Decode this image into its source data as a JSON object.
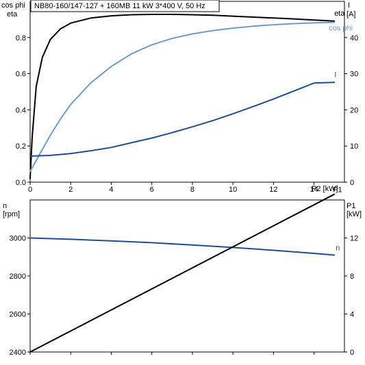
{
  "title": "NB80-160/147-127 + 160MB   11 kW   3*400 V, 50 Hz",
  "colors": {
    "eta": "#000000",
    "cosphi": "#6f9cc4",
    "current": "#1f4e8c",
    "speed": "#1f4e8c",
    "p1": "#000000"
  },
  "chart_data": [
    {
      "type": "line",
      "panel": "top",
      "title": "NB80-160/147-127 + 160MB   11 kW   3*400 V, 50 Hz",
      "xlabel": "P2 [kW]",
      "ylabel_left": [
        "cos phi",
        "eta"
      ],
      "ylabel_right": [
        "I",
        "[A]"
      ],
      "xlim": [
        0,
        15.5
      ],
      "ylim_left": [
        0,
        1.0
      ],
      "ylim_right": [
        0,
        50
      ],
      "xticks": [
        0,
        2,
        4,
        6,
        8,
        10,
        12,
        14
      ],
      "yticks_left": [
        0.0,
        0.2,
        0.4,
        0.6,
        0.8
      ],
      "yticks_left_labels": [
        "0.0",
        "0.2",
        "0.4",
        "0.6",
        "0.8"
      ],
      "yticks_right": [
        0,
        10,
        20,
        30,
        40
      ],
      "grid": false,
      "series": [
        {
          "name": "eta",
          "axis": "left",
          "color": "#000000",
          "x": [
            0.0,
            0.1,
            0.3,
            0.6,
            1.0,
            1.5,
            2.0,
            3.0,
            4.0,
            5.0,
            6.0,
            7.0,
            8.0,
            9.0,
            10.0,
            11.0,
            12.0,
            13.0,
            14.0,
            15.0
          ],
          "y": [
            0.02,
            0.25,
            0.53,
            0.69,
            0.79,
            0.848,
            0.88,
            0.908,
            0.92,
            0.926,
            0.928,
            0.928,
            0.926,
            0.923,
            0.918,
            0.913,
            0.908,
            0.903,
            0.897,
            0.891
          ]
        },
        {
          "name": "cos phi",
          "axis": "left",
          "color": "#6f9cc4",
          "x": [
            0.0,
            0.5,
            1.0,
            1.5,
            2.0,
            3.0,
            4.0,
            5.0,
            6.0,
            7.0,
            8.0,
            9.0,
            10.0,
            11.0,
            12.0,
            13.0,
            14.0,
            15.0
          ],
          "y": [
            0.06,
            0.16,
            0.26,
            0.35,
            0.43,
            0.55,
            0.64,
            0.71,
            0.76,
            0.795,
            0.82,
            0.838,
            0.852,
            0.863,
            0.871,
            0.877,
            0.881,
            0.884
          ]
        },
        {
          "name": "I",
          "axis": "right",
          "color": "#1f4e8c",
          "x": [
            0.0,
            1.0,
            2.0,
            3.0,
            4.0,
            5.0,
            6.0,
            7.0,
            8.0,
            9.0,
            10.0,
            11.0,
            12.0,
            13.0,
            14.0,
            15.0
          ],
          "y": [
            7.2,
            7.4,
            7.9,
            8.7,
            9.6,
            10.9,
            12.2,
            13.7,
            15.3,
            17.0,
            18.9,
            20.9,
            23.0,
            25.2,
            27.4,
            27.6
          ]
        }
      ]
    },
    {
      "type": "line",
      "panel": "bottom",
      "xlabel": "",
      "ylabel_left": [
        "n",
        "[rpm]"
      ],
      "ylabel_right": [
        "P1",
        "[kW]"
      ],
      "xlim": [
        0,
        15.5
      ],
      "ylim_left": [
        2400,
        3200
      ],
      "ylim_right": [
        0,
        16
      ],
      "yticks_left": [
        2400,
        2600,
        2800,
        3000
      ],
      "yticks_right": [
        0,
        4,
        8,
        12
      ],
      "grid": false,
      "series": [
        {
          "name": "n",
          "axis": "left",
          "color": "#1f4e8c",
          "x": [
            0,
            2,
            4,
            6,
            8,
            10,
            12,
            14,
            15
          ],
          "y": [
            3000,
            2993,
            2985,
            2975,
            2963,
            2950,
            2935,
            2919,
            2910
          ]
        },
        {
          "name": "P1",
          "axis": "right",
          "color": "#000000",
          "x": [
            0,
            15
          ],
          "y": [
            0,
            16.6
          ]
        }
      ]
    }
  ]
}
